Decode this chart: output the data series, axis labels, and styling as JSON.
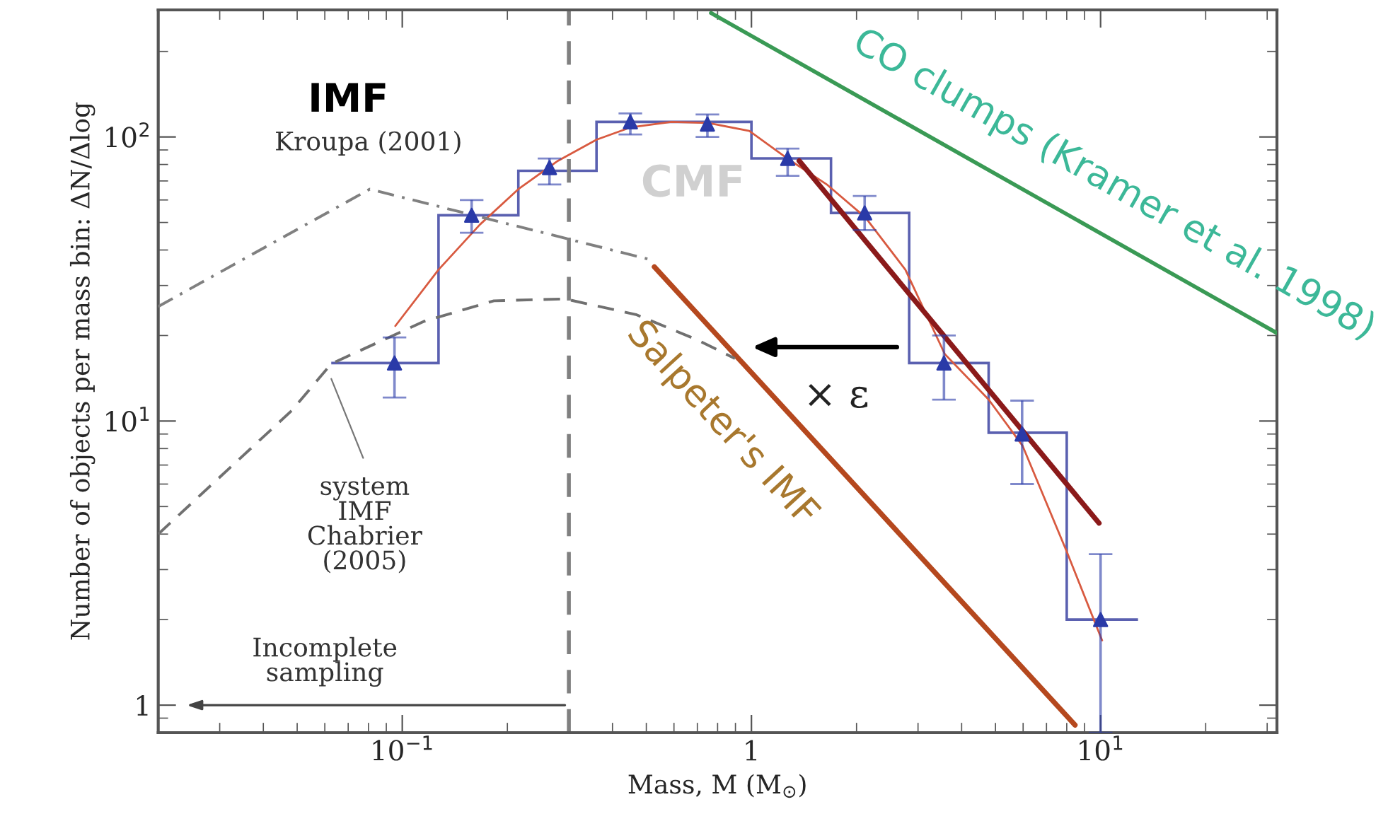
{
  "chart_data": {
    "type": "line",
    "xlabel": "Mass, M (M$_{⊙}$)",
    "ylabel": "Number of objects per mass bin: ΔN/Δlog",
    "log": "xy",
    "xlim": [
      0.02,
      32
    ],
    "ylim": [
      0.8,
      280
    ],
    "xticks": [
      {
        "value": 0.1,
        "label": "10$^{−1}$"
      },
      1,
      {
        "value": 10,
        "label": "10$^{1}$"
      }
    ],
    "yticks": [
      1,
      {
        "value": 10,
        "label": "10$^{1}$"
      },
      {
        "value": 100,
        "label": "10$^{2}$"
      }
    ],
    "grid": false,
    "legend": false,
    "series": [
      {
        "type": "histogram",
        "color": "#5a60b0",
        "bins": [
          0.0626,
          0.127,
          0.215,
          0.36,
          0.6,
          1.0,
          1.69,
          2.83,
          4.78,
          8.0,
          12.8
        ],
        "values": [
          16,
          53,
          76,
          113,
          113,
          84,
          54,
          16,
          9.1,
          2.0
        ]
      },
      {
        "type": "scatter",
        "color": "#2a3aa8",
        "marker": "triangle",
        "x": [
          0.095,
          0.158,
          0.264,
          0.45,
          0.748,
          1.27,
          2.11,
          3.56,
          5.96,
          10
        ],
        "values": [
          16,
          53,
          78,
          113,
          111,
          84,
          54,
          16,
          9.0,
          2.0
        ],
        "errors": [
          [
            12.1,
            19.7
          ],
          [
            46,
            60
          ],
          [
            68,
            84
          ],
          [
            102,
            121
          ],
          [
            100,
            120
          ],
          [
            73,
            91
          ],
          [
            47,
            62
          ],
          [
            11.9,
            20
          ],
          [
            6.0,
            11.8
          ],
          [
            0.8,
            3.4
          ]
        ]
      },
      {
        "color": "#d85a40",
        "x": [
          0.0955,
          0.127,
          0.167,
          0.215,
          0.279,
          0.36,
          0.45,
          0.59,
          0.752,
          0.986,
          1.28,
          1.65,
          2.12,
          2.76,
          3.58,
          4.78,
          5.98,
          8.0,
          10.1
        ],
        "values": [
          21.6,
          34.1,
          49.2,
          65.5,
          82.4,
          97.8,
          108,
          113,
          112,
          105,
          83.3,
          67.8,
          52.1,
          34.1,
          17.2,
          11.9,
          8.18,
          3.47,
          1.69
        ]
      },
      {
        "color": "#8b1a1a",
        "x": [
          1.37,
          9.9
        ],
        "values": [
          82.4,
          4.37
        ]
      },
      {
        "name": "Salpeter's IMF",
        "color": "#b5481e",
        "x": [
          0.527,
          8.45
        ],
        "values": [
          34.9,
          0.851
        ]
      },
      {
        "name": "CO clumps (Kramer et al. 1998)",
        "color": "#3a9a55",
        "x": [
          0.766,
          32
        ],
        "values": [
          273,
          20.4
        ]
      },
      {
        "color": "#808080",
        "line_style": "dashdot",
        "x": [
          0.02,
          0.0807,
          0.513
        ],
        "values": [
          25.3,
          65.5,
          37
        ]
      },
      {
        "color": "#707070",
        "line_style": "dashed",
        "x": [
          0.02,
          0.0483,
          0.0626,
          0.115,
          0.183,
          0.293,
          0.467,
          0.7,
          0.897
        ],
        "values": [
          4.0,
          10.9,
          15.9,
          22.4,
          26.5,
          26.9,
          23.7,
          19.3,
          16.6
        ]
      }
    ],
    "ref_lines": [
      {
        "axis": "x",
        "value": 0.3,
        "color": "#808080",
        "line_style": "dashed"
      }
    ],
    "annotations": [
      "IMF",
      "Kroupa (2001)",
      "CMF",
      "× ε",
      "system\nIMF\nChabrier\n(2005)",
      "Incomplete\nsampling"
    ]
  }
}
